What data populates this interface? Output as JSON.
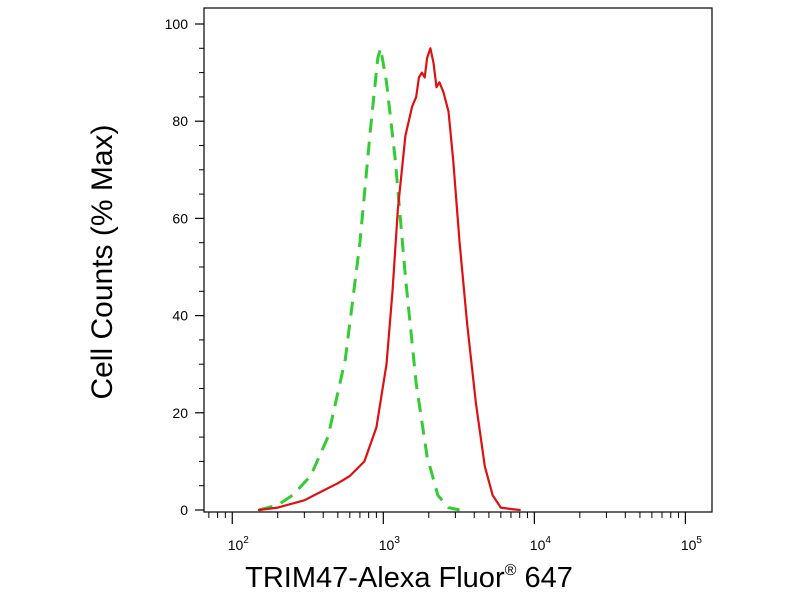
{
  "chart_data": {
    "type": "line",
    "title": "",
    "xlabel_main": "TRIM47-Alexa Fluor",
    "xlabel_sup": "®",
    "xlabel_end": " 647",
    "ylabel": "Cell Counts (% Max)",
    "xscale": "log",
    "xlim": [
      65,
      150000
    ],
    "ylim": [
      0,
      100
    ],
    "x_ticks": [
      {
        "value": 100,
        "base": "10",
        "exp": "2"
      },
      {
        "value": 1000,
        "base": "10",
        "exp": "3"
      },
      {
        "value": 10000,
        "base": "10",
        "exp": "4"
      },
      {
        "value": 100000,
        "base": "10",
        "exp": "5"
      }
    ],
    "y_ticks": [
      0,
      20,
      40,
      60,
      80,
      100
    ],
    "legend": "none",
    "grid": false,
    "series": [
      {
        "style": "dashed",
        "color": "#33cc33",
        "x": [
          150,
          200,
          250,
          330,
          430,
          560,
          700,
          820,
          920,
          960,
          1050,
          1200,
          1400,
          1650,
          1950,
          2300,
          2700,
          3200
        ],
        "y": [
          0,
          1,
          3,
          7,
          15,
          31,
          55,
          78,
          93,
          95,
          88,
          72,
          48,
          26,
          11,
          3,
          0.5,
          0
        ]
      },
      {
        "style": "solid",
        "color": "#dd1111",
        "x": [
          150,
          200,
          300,
          400,
          500,
          600,
          750,
          900,
          1050,
          1150,
          1250,
          1400,
          1550,
          1650,
          1720,
          1800,
          1880,
          1950,
          2050,
          2150,
          2250,
          2350,
          2500,
          2700,
          2900,
          3200,
          3600,
          4100,
          4700,
          5300,
          6000,
          7000,
          8000
        ],
        "y": [
          0,
          0.5,
          2,
          4,
          5.5,
          7,
          10,
          17,
          30,
          45,
          62,
          77,
          83,
          85,
          89,
          90,
          89,
          93,
          95,
          92,
          87,
          88,
          86,
          82,
          72,
          55,
          38,
          22,
          9,
          3,
          0.5,
          0.2,
          0
        ]
      }
    ]
  }
}
